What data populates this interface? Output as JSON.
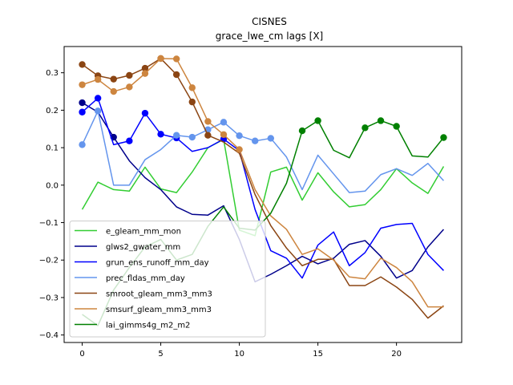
{
  "chart_data": {
    "type": "line",
    "title": "CISNES",
    "subtitle": "grace_lwe_cm lags [X]",
    "xlim": [
      -1.15,
      24.15
    ],
    "ylim": [
      -0.42,
      0.37
    ],
    "xticks": [
      0,
      5,
      10,
      15,
      20
    ],
    "yticks": [
      -0.4,
      -0.3,
      -0.2,
      -0.1,
      0.0,
      0.1,
      0.2,
      0.3
    ],
    "xtick_labels": [
      "0",
      "5",
      "10",
      "15",
      "20"
    ],
    "ytick_labels": [
      "−0.4",
      "−0.3",
      "−0.2",
      "−0.1",
      "0.0",
      "0.1",
      "0.2",
      "0.3"
    ],
    "legend_position": "lower-left",
    "series": [
      {
        "name": "e_gleam_mm_mon",
        "color": "#32cd32",
        "x": [
          0,
          1,
          2,
          3,
          4,
          5,
          6,
          7,
          8,
          9,
          10,
          11,
          12,
          13,
          14,
          15,
          16,
          17,
          18,
          19,
          20,
          21,
          22,
          23
        ],
        "values": [
          -0.065,
          0.008,
          -0.012,
          -0.016,
          0.048,
          -0.01,
          -0.02,
          0.035,
          0.1,
          0.122,
          -0.12,
          -0.135,
          0.035,
          0.048,
          -0.04,
          0.033,
          -0.018,
          -0.058,
          -0.052,
          -0.012,
          0.044,
          0.006,
          -0.022,
          0.05
        ],
        "markers": []
      },
      {
        "name": "glws2_gwater_mm",
        "color": "#00008b",
        "x": [
          0,
          1,
          2,
          3,
          4,
          5,
          6,
          7,
          8,
          9,
          10,
          11,
          12,
          13,
          14,
          15,
          16,
          17,
          18,
          19,
          20,
          21,
          22,
          23
        ],
        "values": [
          0.22,
          0.195,
          0.128,
          0.065,
          0.02,
          -0.012,
          -0.058,
          -0.078,
          -0.08,
          -0.055,
          -0.145,
          -0.258,
          -0.238,
          -0.215,
          -0.19,
          -0.21,
          -0.195,
          -0.158,
          -0.148,
          -0.19,
          -0.248,
          -0.228,
          -0.165,
          -0.118
        ],
        "markers": [
          0,
          2
        ]
      },
      {
        "name": "grun_ens_runoff_mm_day",
        "color": "#0000ff",
        "x": [
          0,
          1,
          2,
          3,
          4,
          5,
          6,
          7,
          8,
          9,
          10,
          11,
          12,
          13,
          14,
          15,
          16,
          17,
          18,
          19,
          20,
          21,
          22,
          23
        ],
        "values": [
          0.195,
          0.232,
          0.108,
          0.118,
          0.192,
          0.136,
          0.126,
          0.09,
          0.1,
          0.123,
          0.092,
          -0.065,
          -0.175,
          -0.195,
          -0.248,
          -0.16,
          -0.125,
          -0.215,
          -0.18,
          -0.115,
          -0.105,
          -0.102,
          -0.185,
          -0.228
        ],
        "markers": [
          0,
          1,
          3,
          4,
          5,
          6,
          9
        ]
      },
      {
        "name": "prec_fldas_mm_day",
        "color": "#6495ed",
        "x": [
          0,
          1,
          2,
          3,
          4,
          5,
          6,
          7,
          8,
          9,
          10,
          11,
          12,
          13,
          14,
          15,
          16,
          17,
          18,
          19,
          20,
          21,
          22,
          23
        ],
        "values": [
          0.108,
          0.198,
          0.0,
          0.0,
          0.068,
          0.095,
          0.133,
          0.128,
          0.148,
          0.168,
          0.132,
          0.118,
          0.125,
          0.075,
          -0.012,
          0.08,
          0.03,
          -0.02,
          -0.016,
          0.028,
          0.044,
          0.026,
          0.058,
          0.012
        ],
        "markers": [
          0,
          1,
          6,
          7,
          8,
          9,
          10,
          11,
          12
        ]
      },
      {
        "name": "smroot_gleam_mm3_mm3",
        "color": "#8b4513",
        "x": [
          0,
          1,
          2,
          3,
          4,
          5,
          6,
          7,
          8,
          9,
          10,
          11,
          12,
          13,
          14,
          15,
          16,
          17,
          18,
          19,
          20,
          21,
          22,
          23
        ],
        "values": [
          0.322,
          0.292,
          0.283,
          0.293,
          0.312,
          0.338,
          0.295,
          0.222,
          0.133,
          0.115,
          0.085,
          -0.025,
          -0.108,
          -0.168,
          -0.215,
          -0.198,
          -0.198,
          -0.268,
          -0.268,
          -0.245,
          -0.272,
          -0.305,
          -0.355,
          -0.322
        ],
        "markers": [
          0,
          1,
          2,
          3,
          4,
          5,
          6,
          7,
          8
        ]
      },
      {
        "name": "smsurf_gleam_mm3_mm3",
        "color": "#cd853f",
        "x": [
          0,
          1,
          2,
          3,
          4,
          5,
          6,
          7,
          8,
          9,
          10,
          11,
          12,
          13,
          14,
          15,
          16,
          17,
          18,
          19,
          20,
          21,
          22,
          23
        ],
        "values": [
          0.268,
          0.282,
          0.25,
          0.262,
          0.298,
          0.338,
          0.337,
          0.26,
          0.17,
          0.135,
          0.095,
          -0.012,
          -0.082,
          -0.118,
          -0.185,
          -0.17,
          -0.2,
          -0.245,
          -0.25,
          -0.195,
          -0.22,
          -0.258,
          -0.325,
          -0.325
        ],
        "markers": [
          0,
          1,
          2,
          3,
          4,
          5,
          6,
          7,
          8,
          9,
          10
        ]
      },
      {
        "name": "lai_gimms4g_m2_m2",
        "color": "#008000",
        "x": [
          0,
          1,
          2,
          3,
          4,
          5,
          6,
          7,
          8,
          9,
          10,
          11,
          12,
          13,
          14,
          15,
          16,
          17,
          18,
          19,
          20,
          21,
          22,
          23
        ],
        "values": [
          -0.345,
          -0.375,
          -0.28,
          -0.22,
          -0.165,
          -0.145,
          -0.2,
          -0.185,
          -0.11,
          -0.058,
          -0.115,
          -0.12,
          -0.075,
          0.005,
          0.145,
          0.172,
          0.093,
          0.073,
          0.153,
          0.172,
          0.157,
          0.078,
          0.075,
          0.127
        ],
        "markers": [
          14,
          15,
          18,
          19,
          20,
          23
        ]
      }
    ]
  }
}
